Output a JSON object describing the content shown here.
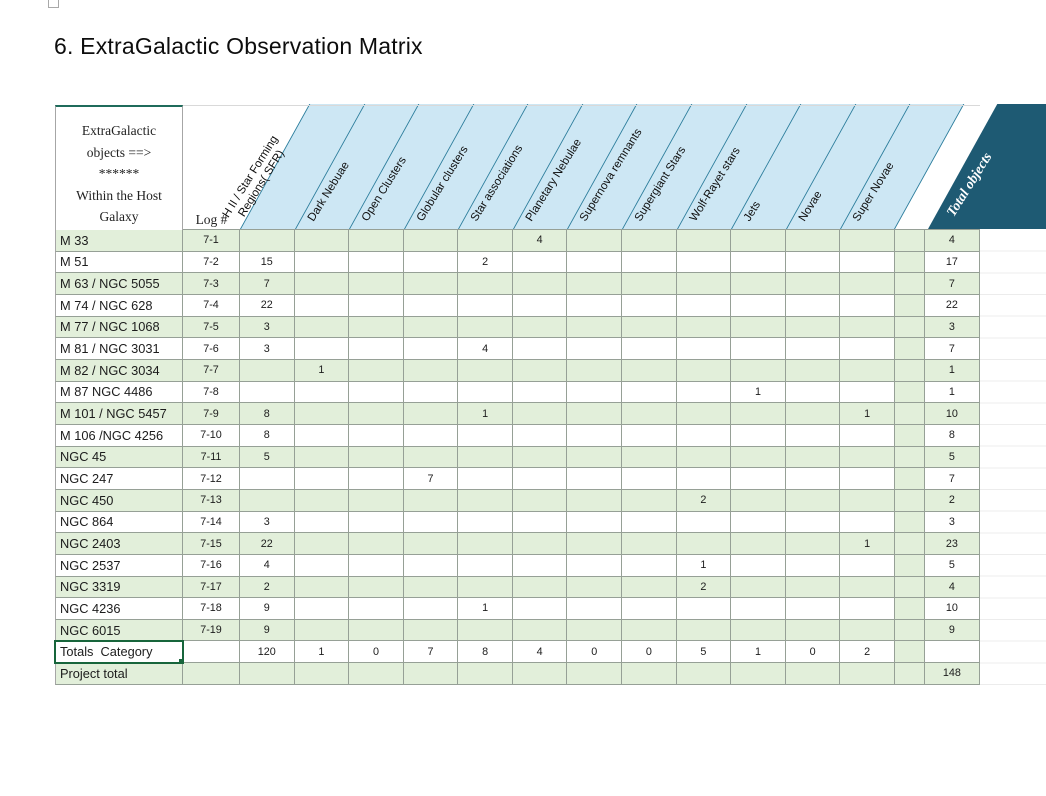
{
  "title": "6. ExtraGalactic Observation Matrix",
  "table": {
    "corner_header": "ExtraGalactic\nobjects ==>\n******\nWithin the Host\nGalaxy",
    "log_header": "Log #",
    "categories": [
      "H II / Star Forming\nRegions( SFR)",
      "Dark Nebuae",
      "Open Clusters",
      "Globular clusters",
      "Star associations",
      "Planetary Nebulae",
      "Supernova remnants",
      "Supergiant Stars",
      "Wolf-Rayet stars",
      "Jets",
      "Novae",
      "Super Novae"
    ],
    "total_header": "Total objects",
    "rows": [
      {
        "name": "M 33",
        "log": "7-1",
        "values": [
          "",
          "",
          "",
          "",
          "",
          "4",
          "",
          "",
          "",
          "",
          "",
          ""
        ],
        "total": "4"
      },
      {
        "name": "M 51",
        "log": "7-2",
        "values": [
          "15",
          "",
          "",
          "",
          "2",
          "",
          "",
          "",
          "",
          "",
          "",
          ""
        ],
        "total": "17"
      },
      {
        "name": "M 63 / NGC 5055",
        "log": "7-3",
        "values": [
          "7",
          "",
          "",
          "",
          "",
          "",
          "",
          "",
          "",
          "",
          "",
          ""
        ],
        "total": "7"
      },
      {
        "name": "M 74 / NGC 628",
        "log": "7-4",
        "values": [
          "22",
          "",
          "",
          "",
          "",
          "",
          "",
          "",
          "",
          "",
          "",
          ""
        ],
        "total": "22"
      },
      {
        "name": "M 77 / NGC 1068",
        "log": "7-5",
        "values": [
          "3",
          "",
          "",
          "",
          "",
          "",
          "",
          "",
          "",
          "",
          "",
          ""
        ],
        "total": "3"
      },
      {
        "name": "M 81 / NGC 3031",
        "log": "7-6",
        "values": [
          "3",
          "",
          "",
          "",
          "4",
          "",
          "",
          "",
          "",
          "",
          "",
          ""
        ],
        "total": "7"
      },
      {
        "name": "M 82 / NGC 3034",
        "log": "7-7",
        "values": [
          "",
          "1",
          "",
          "",
          "",
          "",
          "",
          "",
          "",
          "",
          "",
          ""
        ],
        "total": "1"
      },
      {
        "name": "M 87 NGC 4486",
        "log": "7-8",
        "values": [
          "",
          "",
          "",
          "",
          "",
          "",
          "",
          "",
          "",
          "1",
          "",
          ""
        ],
        "total": "1"
      },
      {
        "name": "M 101 / NGC 5457",
        "log": "7-9",
        "values": [
          "8",
          "",
          "",
          "",
          "1",
          "",
          "",
          "",
          "",
          "",
          "",
          "1"
        ],
        "total": "10"
      },
      {
        "name": "M 106 /NGC 4256",
        "log": "7-10",
        "values": [
          "8",
          "",
          "",
          "",
          "",
          "",
          "",
          "",
          "",
          "",
          "",
          ""
        ],
        "total": "8"
      },
      {
        "name": "NGC 45",
        "log": "7-11",
        "values": [
          "5",
          "",
          "",
          "",
          "",
          "",
          "",
          "",
          "",
          "",
          "",
          ""
        ],
        "total": "5"
      },
      {
        "name": "NGC 247",
        "log": "7-12",
        "values": [
          "",
          "",
          "",
          "7",
          "",
          "",
          "",
          "",
          "",
          "",
          "",
          ""
        ],
        "total": "7"
      },
      {
        "name": "NGC 450",
        "log": "7-13",
        "values": [
          "",
          "",
          "",
          "",
          "",
          "",
          "",
          "",
          "2",
          "",
          "",
          ""
        ],
        "total": "2"
      },
      {
        "name": "NGC 864",
        "log": "7-14",
        "values": [
          "3",
          "",
          "",
          "",
          "",
          "",
          "",
          "",
          "",
          "",
          "",
          ""
        ],
        "total": "3"
      },
      {
        "name": "NGC 2403",
        "log": "7-15",
        "values": [
          "22",
          "",
          "",
          "",
          "",
          "",
          "",
          "",
          "",
          "",
          "",
          "1"
        ],
        "total": "23"
      },
      {
        "name": "NGC 2537",
        "log": "7-16",
        "values": [
          "4",
          "",
          "",
          "",
          "",
          "",
          "",
          "",
          "1",
          "",
          "",
          ""
        ],
        "total": "5"
      },
      {
        "name": "NGC 3319",
        "log": "7-17",
        "values": [
          "2",
          "",
          "",
          "",
          "",
          "",
          "",
          "",
          "2",
          "",
          "",
          ""
        ],
        "total": "4"
      },
      {
        "name": "NGC 4236",
        "log": "7-18",
        "values": [
          "9",
          "",
          "",
          "",
          "1",
          "",
          "",
          "",
          "",
          "",
          "",
          ""
        ],
        "total": "10"
      },
      {
        "name": "NGC 6015",
        "log": "7-19",
        "values": [
          "9",
          "",
          "",
          "",
          "",
          "",
          "",
          "",
          "",
          "",
          "",
          ""
        ],
        "total": "9"
      }
    ],
    "totals_row": {
      "name": "Totals  Category",
      "log": "",
      "values": [
        "120",
        "1",
        "0",
        "7",
        "8",
        "4",
        "0",
        "0",
        "5",
        "1",
        "0",
        "2"
      ],
      "total": ""
    },
    "project_row": {
      "name": "Project total",
      "log": "",
      "values": [
        "",
        "",
        "",
        "",
        "",
        "",
        "",
        "",
        "",
        "",
        "",
        ""
      ],
      "total": "148"
    }
  },
  "colors": {
    "header_fill": "#CDE7F4",
    "header_line": "#2A7C9B",
    "total_header_fill": "#1E5A73",
    "row_green": "#E2EFDA",
    "grid_border": "#96A096",
    "corner_top_border": "#1F6B5B",
    "selection": "#17653B"
  }
}
